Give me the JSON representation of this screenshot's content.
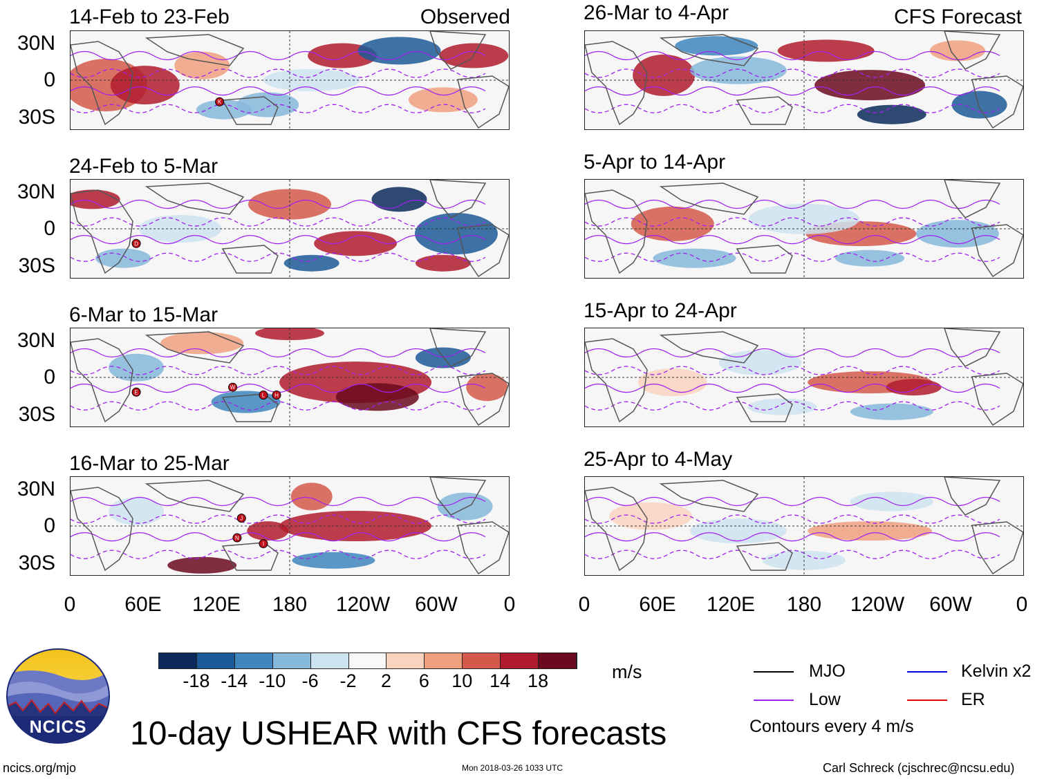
{
  "header": {
    "observed_label": "Observed",
    "forecast_label": "CFS Forecast"
  },
  "panels": {
    "left": [
      {
        "title": "14-Feb to 23-Feb"
      },
      {
        "title": "24-Feb to 5-Mar"
      },
      {
        "title": "6-Mar to 15-Mar"
      },
      {
        "title": "16-Mar to 25-Mar"
      }
    ],
    "right": [
      {
        "title": "26-Mar to 4-Apr"
      },
      {
        "title": "5-Apr to 14-Apr"
      },
      {
        "title": "15-Apr to 24-Apr"
      },
      {
        "title": "25-Apr to 4-May"
      }
    ]
  },
  "axes": {
    "lat_labels": [
      "30N",
      "0",
      "30S"
    ],
    "lon_labels": [
      "0",
      "60E",
      "120E",
      "180",
      "120W",
      "60W",
      "0"
    ]
  },
  "colorbar": {
    "unit": "m/s",
    "tick_labels": [
      "-18",
      "-14",
      "-10",
      "-6",
      "-2",
      "2",
      "6",
      "10",
      "14",
      "18"
    ],
    "colors": [
      "#0b2a5b",
      "#1d5a98",
      "#3e86bd",
      "#86b9da",
      "#cde3f0",
      "#f8f8f8",
      "#fbd3bf",
      "#f0a07f",
      "#d35a4a",
      "#b01c2e",
      "#6b0a1e"
    ]
  },
  "legend": {
    "mjo": "MJO",
    "kelvin": "Kelvin x2",
    "low": "Low",
    "er": "ER",
    "contours": "Contours every 4 m/s",
    "colors": {
      "mjo": "#000000",
      "kelvin": "#0000dd",
      "low": "#a020f0",
      "er": "#e00000"
    }
  },
  "storm_markers": {
    "panel1": [
      "K"
    ],
    "panel2": [
      "D"
    ],
    "panel3": [
      "E",
      "W",
      "L",
      "H"
    ],
    "panel4": [
      "J",
      "N",
      "I"
    ]
  },
  "chart_data": {
    "type": "heatmap",
    "title": "10-day USHEAR with CFS forecasts",
    "variable": "USHEAR",
    "unit": "m/s",
    "color_levels": [
      -18,
      -14,
      -10,
      -6,
      -2,
      2,
      6,
      10,
      14,
      18
    ],
    "lon_range": [
      0,
      360
    ],
    "lat_range": [
      -40,
      40
    ],
    "panels": [
      {
        "period": "14-Feb to 23-Feb",
        "source": "Observed"
      },
      {
        "period": "24-Feb to 5-Mar",
        "source": "Observed"
      },
      {
        "period": "6-Mar to 15-Mar",
        "source": "Observed"
      },
      {
        "period": "16-Mar to 25-Mar",
        "source": "Observed"
      },
      {
        "period": "26-Mar to 4-Apr",
        "source": "CFS Forecast"
      },
      {
        "period": "5-Apr to 14-Apr",
        "source": "CFS Forecast"
      },
      {
        "period": "15-Apr to 24-Apr",
        "source": "CFS Forecast"
      },
      {
        "period": "25-Apr to 4-May",
        "source": "CFS Forecast"
      }
    ],
    "contour_interval": "4 m/s"
  },
  "branding": {
    "logo_text": "NCICS",
    "main_title": "10-day USHEAR with CFS forecasts",
    "url": "ncics.org/mjo",
    "timestamp": "Mon 2018-03-26 1033 UTC",
    "credit": "Carl Schreck (cjschrec@ncsu.edu)"
  }
}
